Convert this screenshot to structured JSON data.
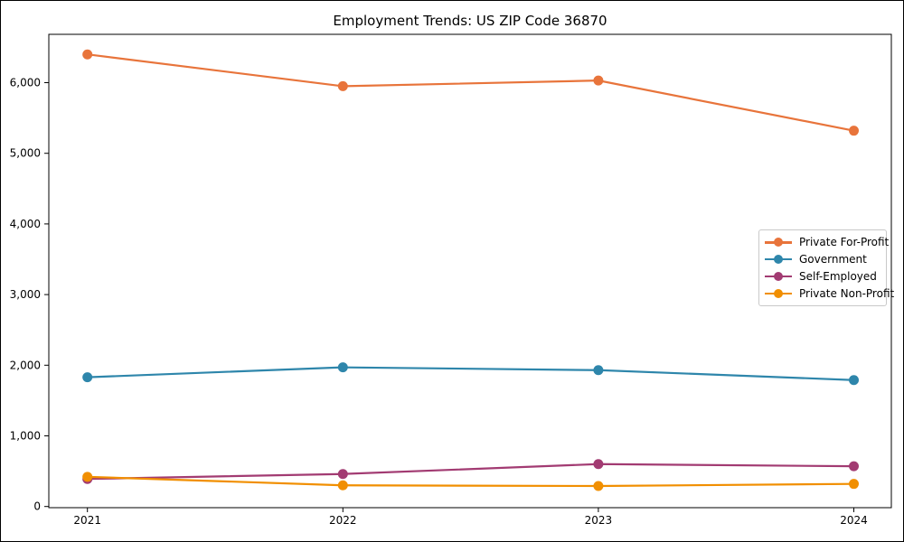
{
  "figure": {
    "title": "Employment Trends: US ZIP Code 36870"
  },
  "chart_data": {
    "type": "line",
    "title": "Employment Trends: US ZIP Code 36870",
    "categories": [
      "2021",
      "2022",
      "2023",
      "2024"
    ],
    "series": [
      {
        "name": "Private For-Profit",
        "color": "#E8743B",
        "values": [
          6400,
          5950,
          6030,
          5320
        ]
      },
      {
        "name": "Government",
        "color": "#2E86AB",
        "values": [
          1830,
          1970,
          1930,
          1790
        ]
      },
      {
        "name": "Self-Employed",
        "color": "#A23B72",
        "values": [
          390,
          460,
          600,
          570
        ]
      },
      {
        "name": "Private Non-Profit",
        "color": "#F18F01",
        "values": [
          420,
          300,
          290,
          320
        ]
      }
    ],
    "xlabel": "",
    "ylabel": "",
    "y_ticks": [
      0,
      1000,
      2000,
      3000,
      4000,
      5000,
      6000
    ],
    "y_tick_labels": [
      "0",
      "1,000",
      "2,000",
      "3,000",
      "4,000",
      "5,000",
      "6,000"
    ],
    "ylim": [
      0,
      6700
    ],
    "grid": false,
    "legend_position": "center-right",
    "marker": "circle"
  }
}
